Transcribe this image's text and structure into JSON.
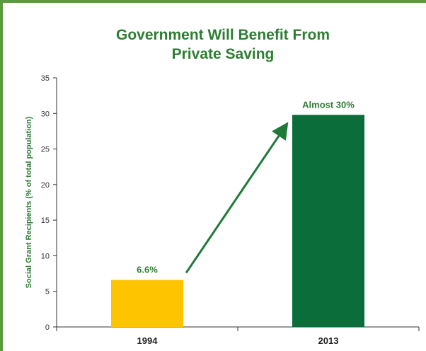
{
  "colors": {
    "frame": "#5a9a3c",
    "title": "#2e7d32",
    "bar_1994": "#ffc400",
    "bar_2013": "#0b6e3a",
    "arrow": "#1f7a3a",
    "label": "#2e7d32",
    "axis": "#333333"
  },
  "chart_data": {
    "type": "bar",
    "title_lines": [
      "Government Will Benefit From",
      "Private Saving"
    ],
    "ylabel": "Social Grant Recipients (% of total population)",
    "xlabel": "",
    "ylim": [
      0,
      35
    ],
    "yticks": [
      0,
      5,
      10,
      15,
      20,
      25,
      30,
      35
    ],
    "categories": [
      "1994",
      "2013"
    ],
    "values": [
      6.6,
      29.8
    ],
    "data_labels": [
      "6.6%",
      "Almost 30%"
    ],
    "grid": false,
    "annotation": "arrow from 1994 bar to 2013 bar"
  }
}
